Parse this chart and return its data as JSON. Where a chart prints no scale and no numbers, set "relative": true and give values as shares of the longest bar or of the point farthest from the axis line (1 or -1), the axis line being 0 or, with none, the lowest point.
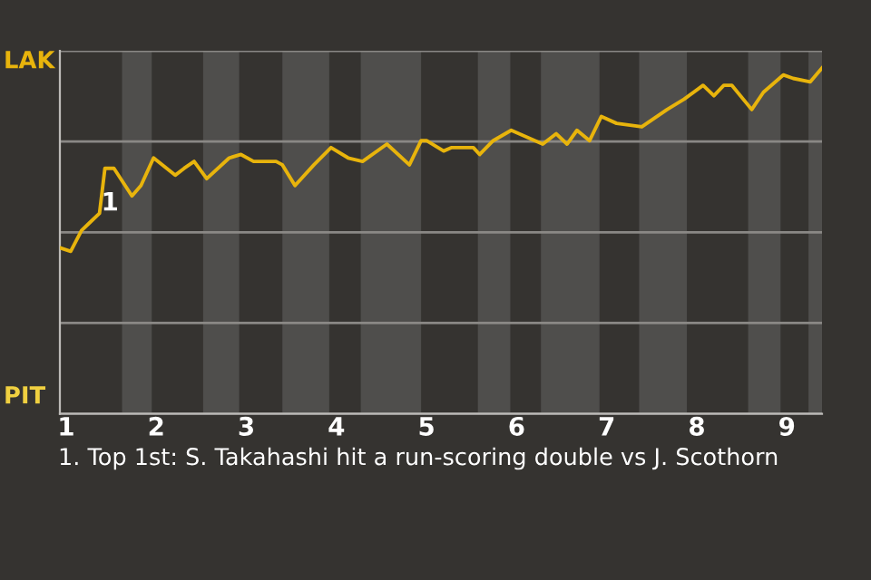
{
  "chart_data": {
    "type": "line",
    "relative": true,
    "x": [
      0.93,
      1.05,
      1.17,
      1.25,
      1.37,
      1.43,
      1.53,
      1.73,
      1.83,
      1.97,
      2.21,
      2.31,
      2.42,
      2.56,
      2.81,
      2.94,
      3.08,
      3.33,
      3.4,
      3.54,
      3.75,
      3.94,
      4.13,
      4.29,
      4.56,
      4.81,
      4.94,
      5.0,
      5.19,
      5.28,
      5.52,
      5.59,
      5.74,
      5.94,
      6.29,
      6.44,
      6.56,
      6.67,
      6.81,
      6.94,
      7.11,
      7.39,
      7.67,
      7.86,
      8.07,
      8.19,
      8.3,
      8.39,
      8.61,
      8.74,
      8.96,
      9.07,
      9.26,
      9.39
    ],
    "values": [
      0.48,
      0.47,
      0.53,
      0.55,
      0.58,
      0.71,
      0.71,
      0.63,
      0.66,
      0.74,
      0.69,
      0.71,
      0.73,
      0.68,
      0.74,
      0.75,
      0.73,
      0.73,
      0.72,
      0.66,
      0.72,
      0.77,
      0.74,
      0.73,
      0.78,
      0.72,
      0.79,
      0.79,
      0.76,
      0.77,
      0.77,
      0.75,
      0.79,
      0.82,
      0.78,
      0.81,
      0.78,
      0.82,
      0.79,
      0.86,
      0.84,
      0.83,
      0.88,
      0.91,
      0.95,
      0.92,
      0.95,
      0.95,
      0.88,
      0.93,
      0.98,
      0.97,
      0.96,
      1
    ],
    "color": "#e8b40c",
    "xlim": [
      0.93,
      9.39
    ],
    "xticks": [
      1,
      2,
      3,
      4,
      5,
      6,
      7,
      8,
      9
    ],
    "grid": "y",
    "bands": [
      {
        "axis": "x",
        "from": 1.62,
        "to": 1.95,
        "color": "#4f4e4c"
      },
      {
        "axis": "x",
        "from": 2.52,
        "to": 2.92,
        "color": "#4f4e4c"
      },
      {
        "axis": "x",
        "from": 3.4,
        "to": 3.92,
        "color": "#4f4e4c"
      },
      {
        "axis": "x",
        "from": 4.27,
        "to": 4.94,
        "color": "#4f4e4c"
      },
      {
        "axis": "x",
        "from": 5.57,
        "to": 5.93,
        "color": "#4f4e4c"
      },
      {
        "axis": "x",
        "from": 6.27,
        "to": 6.92,
        "color": "#4f4e4c"
      },
      {
        "axis": "x",
        "from": 7.36,
        "to": 7.89,
        "color": "#4f4e4c"
      },
      {
        "axis": "x",
        "from": 8.57,
        "to": 8.93,
        "color": "#4f4e4c"
      },
      {
        "axis": "x",
        "from": 9.24,
        "to": 9.39,
        "color": "#4f4e4c"
      }
    ],
    "annotations": [
      "LAK",
      "PIT",
      {
        "text": "1",
        "x": 1.43,
        "y": 0.71
      },
      "1. Top 1st: S. Takahashi hit a run-scoring double vs J. Scothorn"
    ]
  }
}
